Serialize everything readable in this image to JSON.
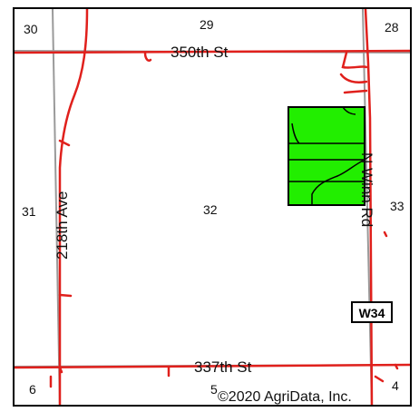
{
  "map": {
    "sections": {
      "nw": "30",
      "n": "29",
      "ne": "28",
      "w": "31",
      "center": "32",
      "e": "33",
      "sw": "6",
      "s": "5",
      "se": "4"
    },
    "roads": {
      "north": "350th St",
      "south": "337th St",
      "west": "218th Ave",
      "east": "N Winn Rd"
    },
    "highway_shield": "W34",
    "copyright": "©2020 AgriData, Inc.",
    "colors": {
      "road": "#e0201c",
      "section_line": "#9a9a9a",
      "field_fill": "#22ee00",
      "field_outline": "#000000"
    }
  }
}
